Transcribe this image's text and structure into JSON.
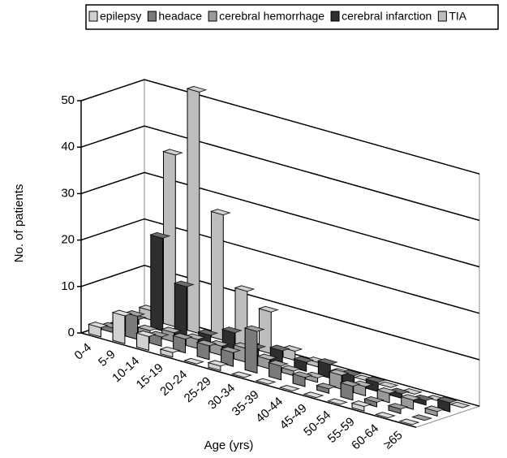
{
  "chart_data": {
    "type": "bar3d",
    "categories": [
      "0-4",
      "5-9",
      "10-14",
      "15-19",
      "20-24",
      "25-29",
      "30-34",
      "35-39",
      "40-44",
      "45-49",
      "50-54",
      "55-59",
      "60-64",
      "≥65"
    ],
    "series": [
      {
        "name": "epilepsy",
        "color": "#d0d0d0",
        "values": [
          2,
          6,
          3,
          1,
          0,
          1,
          0,
          0,
          0,
          0,
          0,
          1,
          0,
          0
        ]
      },
      {
        "name": "headace",
        "color": "#7a7a7a",
        "values": [
          1,
          5,
          2,
          3,
          3,
          3,
          9,
          3,
          2,
          1,
          3,
          1,
          1,
          0
        ]
      },
      {
        "name": "cerebral hemorrhage",
        "color": "#9a9a9a",
        "values": [
          0,
          1,
          2,
          2,
          2,
          3,
          2,
          1,
          1,
          3,
          2,
          2,
          2,
          1
        ]
      },
      {
        "name": "cerebral infarction",
        "color": "#2e2e2e",
        "values": [
          1,
          20,
          11,
          2,
          4,
          2,
          3,
          2,
          3,
          2,
          2,
          1,
          1,
          2
        ]
      },
      {
        "name": "TIA",
        "color": "#bdbdbd",
        "values": [
          2,
          37,
          52,
          27,
          12,
          9,
          2,
          1,
          0,
          0,
          0,
          0,
          0,
          0
        ]
      }
    ],
    "x_label": "Age (yrs)",
    "y_label": "No. of patients",
    "ylim": [
      0,
      50
    ],
    "yticks": [
      0,
      10,
      20,
      30,
      40,
      50
    ],
    "grid": true
  }
}
